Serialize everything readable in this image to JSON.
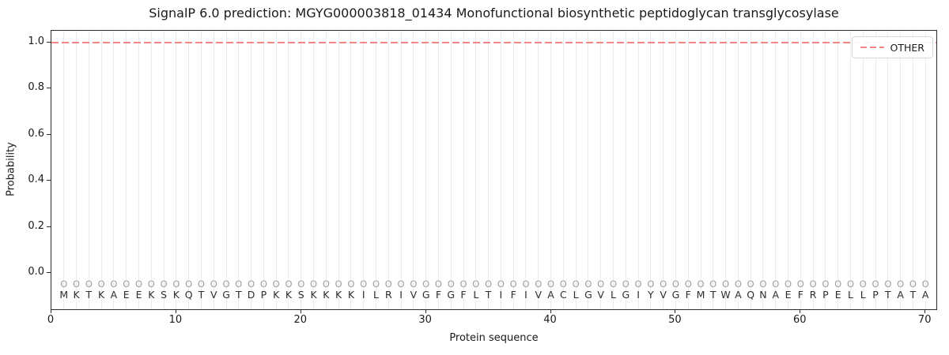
{
  "figure": {
    "title": "SignalP 6.0 prediction: MGYG000003818_01434 Monofunctional biosynthetic peptidoglycan transglycosylase",
    "xlabel": "Protein sequence",
    "ylabel": "Probability"
  },
  "legend": {
    "items": [
      {
        "label": "OTHER",
        "color": "#f28585",
        "line_style": "dashed"
      }
    ],
    "position": "upper right"
  },
  "axes": {
    "x_ticks": [
      0,
      10,
      20,
      30,
      40,
      50,
      60,
      70
    ],
    "y_ticks": [
      0.0,
      0.2,
      0.4,
      0.6,
      0.8,
      1.0
    ],
    "xlim": [
      0,
      71
    ],
    "ylim": [
      -0.16,
      1.05
    ],
    "grid": "vertical gridline at every residue position"
  },
  "sequence": {
    "residues": "MKTKAEEKSKQTVGTDPKKSKKKKILRIVGFGFLTIFIVACLGVLGIYVGFMTWAQNAEFRPELLPTATA",
    "length": 70,
    "per_position_prediction_label": "O"
  },
  "colors": {
    "other_line": "#f28585",
    "gridline": "#ececec",
    "marker_o": "#9e9e9e",
    "residue_text": "#2e2e2e",
    "spine": "#2b2b2b"
  },
  "chart_data": {
    "type": "line",
    "title": "SignalP 6.0 prediction: MGYG000003818_01434 Monofunctional biosynthetic peptidoglycan transglycosylase",
    "xlabel": "Protein sequence",
    "ylabel": "Probability",
    "xlim": [
      0,
      71
    ],
    "ylim": [
      -0.16,
      1.05
    ],
    "x_ticks": [
      0,
      10,
      20,
      30,
      40,
      50,
      60,
      70
    ],
    "y_ticks": [
      0.0,
      0.2,
      0.4,
      0.6,
      0.8,
      1.0
    ],
    "legend_position": "upper right",
    "grid": "vertical per-residue gridlines only",
    "series": [
      {
        "name": "OTHER",
        "color": "#f28585",
        "line_style": "dashed",
        "x_start": 1,
        "x_end": 70,
        "y_constant": 1.0,
        "note": "OTHER probability is a flat line at 1.0 across all 70 residue positions"
      }
    ],
    "x_categories_residues": "MKTKAEEKSKQTVGTDPKKSKKKKILRIVGFGFLTIFIVACLGVLGIYVGFMTWAQNAEFRPELLPTATA",
    "per_position_labels": "O repeated at every one of the 70 positions (predicted class marker row above residue letters)"
  }
}
